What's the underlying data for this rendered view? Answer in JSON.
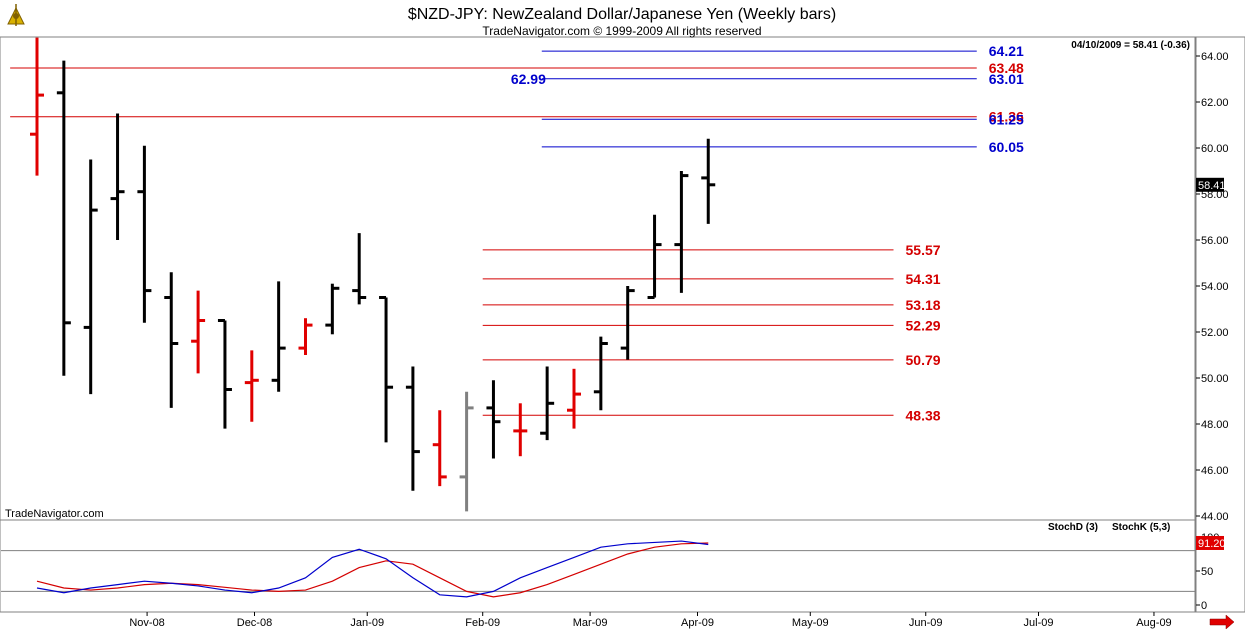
{
  "window": {
    "icon": "sextant-logo-icon"
  },
  "header": {
    "title": "$NZD-JPY:  NewZealand Dollar/Japanese Yen  (Weekly bars)",
    "subtitle": "TradeNavigator.com © 1999-2009 All rights reserved",
    "info": "04/10/2009 = 58.41 (-0.36)"
  },
  "watermark": "TradeNavigator.com",
  "colors": {
    "up": "#000000",
    "down": "#e00000",
    "neutral": "#808080",
    "fib_red": "#d40000",
    "fib_blue": "#0000cc",
    "stoch_d": "#d40000",
    "stoch_k": "#0000cc"
  },
  "chart_data": [
    {
      "type": "ohlc",
      "timeframe": "weekly",
      "ylim": [
        44,
        64.5
      ],
      "y_ticks": [
        "64.00",
        "62.00",
        "60.00",
        "58.00",
        "56.00",
        "54.00",
        "52.00",
        "50.00",
        "48.00",
        "46.00",
        "44.00"
      ],
      "y_tick_values": [
        64,
        62,
        60,
        58,
        56,
        54,
        52,
        50,
        48,
        46,
        44
      ],
      "x_labels": [
        "Nov-08",
        "Dec-08",
        "Jan-09",
        "Feb-09",
        "Mar-09",
        "Apr-09",
        "May-09",
        "Jun-09",
        "Jul-09",
        "Aug-09"
      ],
      "x_label_index": [
        4.1,
        8.1,
        12.3,
        16.6,
        20.6,
        24.6,
        28.8,
        33.1,
        37.3,
        41.6
      ],
      "last_price": "58.41",
      "bars": [
        {
          "i": 0,
          "o": 60.6,
          "h": 64.8,
          "l": 58.8,
          "c": 62.3,
          "color": "down"
        },
        {
          "i": 1,
          "o": 62.4,
          "h": 63.8,
          "l": 50.1,
          "c": 52.4,
          "color": "up"
        },
        {
          "i": 2,
          "o": 52.2,
          "h": 59.5,
          "l": 49.3,
          "c": 57.3,
          "color": "up"
        },
        {
          "i": 3,
          "o": 57.8,
          "h": 61.5,
          "l": 56.0,
          "c": 58.1,
          "color": "up"
        },
        {
          "i": 4,
          "o": 58.1,
          "h": 60.1,
          "l": 52.4,
          "c": 53.8,
          "color": "up"
        },
        {
          "i": 5,
          "o": 53.5,
          "h": 54.6,
          "l": 48.7,
          "c": 51.5,
          "color": "up"
        },
        {
          "i": 6,
          "o": 51.6,
          "h": 53.8,
          "l": 50.2,
          "c": 52.5,
          "color": "down"
        },
        {
          "i": 7,
          "o": 52.5,
          "h": 52.5,
          "l": 47.8,
          "c": 49.5,
          "color": "up"
        },
        {
          "i": 8,
          "o": 49.8,
          "h": 51.2,
          "l": 48.1,
          "c": 49.9,
          "color": "down"
        },
        {
          "i": 9,
          "o": 49.9,
          "h": 54.2,
          "l": 49.4,
          "c": 51.3,
          "color": "up"
        },
        {
          "i": 10,
          "o": 51.3,
          "h": 52.6,
          "l": 51.0,
          "c": 52.3,
          "color": "down"
        },
        {
          "i": 11,
          "o": 52.3,
          "h": 54.1,
          "l": 51.9,
          "c": 53.9,
          "color": "up"
        },
        {
          "i": 12,
          "o": 53.8,
          "h": 56.3,
          "l": 53.2,
          "c": 53.5,
          "color": "up"
        },
        {
          "i": 13,
          "o": 53.5,
          "h": 53.5,
          "l": 47.2,
          "c": 49.6,
          "color": "up"
        },
        {
          "i": 14,
          "o": 49.6,
          "h": 50.5,
          "l": 45.1,
          "c": 46.8,
          "color": "up"
        },
        {
          "i": 15,
          "o": 47.1,
          "h": 48.6,
          "l": 45.3,
          "c": 45.7,
          "color": "down"
        },
        {
          "i": 16,
          "o": 45.7,
          "h": 49.4,
          "l": 44.2,
          "c": 48.7,
          "color": "neutral"
        },
        {
          "i": 17,
          "o": 48.7,
          "h": 49.9,
          "l": 46.5,
          "c": 48.1,
          "color": "up"
        },
        {
          "i": 18,
          "o": 47.7,
          "h": 48.9,
          "l": 46.6,
          "c": 47.7,
          "color": "down"
        },
        {
          "i": 19,
          "o": 47.6,
          "h": 50.5,
          "l": 47.3,
          "c": 48.9,
          "color": "up"
        },
        {
          "i": 20,
          "o": 48.6,
          "h": 50.4,
          "l": 47.8,
          "c": 49.3,
          "color": "down"
        },
        {
          "i": 21,
          "o": 49.4,
          "h": 51.8,
          "l": 48.6,
          "c": 51.5,
          "color": "up"
        },
        {
          "i": 22,
          "o": 51.3,
          "h": 54.0,
          "l": 50.8,
          "c": 53.8,
          "color": "up"
        },
        {
          "i": 23,
          "o": 53.5,
          "h": 57.1,
          "l": 53.5,
          "c": 55.8,
          "color": "up"
        },
        {
          "i": 24,
          "o": 55.8,
          "h": 59.0,
          "l": 53.7,
          "c": 58.8,
          "color": "up"
        },
        {
          "i": 25,
          "o": 58.7,
          "h": 60.4,
          "l": 56.7,
          "c": 58.4,
          "color": "up"
        }
      ],
      "fib_levels": [
        {
          "label": "64.21",
          "value": 64.21,
          "color": "blue",
          "from": 18.8,
          "to": 35
        },
        {
          "label": "63.48",
          "value": 63.48,
          "color": "red",
          "from": -1,
          "to": 35
        },
        {
          "label": "63.01",
          "value": 63.01,
          "color": "blue",
          "from": 18.8,
          "to": 35
        },
        {
          "label": "61.36",
          "value": 61.36,
          "color": "red",
          "from": -1,
          "to": 35
        },
        {
          "label": "61.25",
          "value": 61.25,
          "color": "blue",
          "from": 18.8,
          "to": 35
        },
        {
          "label": "60.05",
          "value": 60.05,
          "color": "blue",
          "from": 18.8,
          "to": 35
        },
        {
          "label": "55.57",
          "value": 55.57,
          "color": "red",
          "from": 16.6,
          "to": 31.9
        },
        {
          "label": "54.31",
          "value": 54.31,
          "color": "red",
          "from": 16.6,
          "to": 31.9
        },
        {
          "label": "53.18",
          "value": 53.18,
          "color": "red",
          "from": 16.6,
          "to": 31.9
        },
        {
          "label": "52.29",
          "value": 52.29,
          "color": "red",
          "from": 16.6,
          "to": 31.9
        },
        {
          "label": "50.79",
          "value": 50.79,
          "color": "red",
          "from": 16.6,
          "to": 31.9
        },
        {
          "label": "48.38",
          "value": 48.38,
          "color": "red",
          "from": 16.6,
          "to": 31.9
        }
      ],
      "extra_label": {
        "text": "62.99",
        "value": 63.0,
        "color": "blue",
        "at": 18.3
      }
    },
    {
      "type": "line",
      "title": "Stochastic",
      "ylim": [
        -5,
        115
      ],
      "y_ticks": [
        "100",
        "50",
        "0"
      ],
      "y_tick_values": [
        100,
        50,
        0
      ],
      "last_value": "91.20",
      "reference_lines": [
        80,
        20
      ],
      "series": [
        {
          "name": "StochD (3)",
          "color": "red",
          "values": [
            35,
            25,
            22,
            25,
            30,
            32,
            30,
            26,
            22,
            20,
            22,
            35,
            55,
            65,
            60,
            40,
            20,
            12,
            18,
            30,
            45,
            60,
            75,
            85,
            90,
            91.2
          ]
        },
        {
          "name": "StochK (5,3)",
          "color": "blue",
          "values": [
            25,
            18,
            25,
            30,
            35,
            32,
            28,
            22,
            18,
            25,
            40,
            70,
            82,
            68,
            40,
            15,
            12,
            20,
            40,
            55,
            70,
            85,
            90,
            92,
            94,
            89
          ]
        }
      ]
    }
  ]
}
